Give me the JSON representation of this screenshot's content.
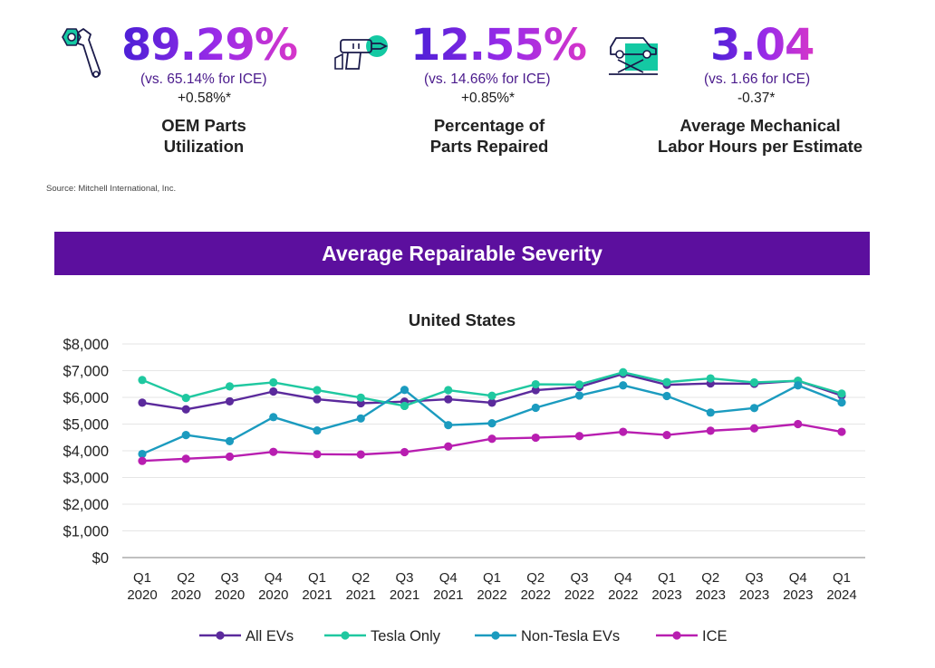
{
  "stats": [
    {
      "value": "89.29%",
      "comparison": "(vs. 65.14% for ICE)",
      "change": "+0.58%*",
      "label_line1": "OEM Parts",
      "label_line2": "Utilization",
      "icon": "wrench-gear-icon"
    },
    {
      "value": "12.55%",
      "comparison": "(vs. 14.66% for ICE)",
      "change": "+0.85%*",
      "label_line1": "Percentage of",
      "label_line2": "Parts Repaired",
      "icon": "drill-tool-icon"
    },
    {
      "value": "3.04",
      "comparison": "(vs. 1.66 for ICE)",
      "change": "-0.37*",
      "label_line1": "Average Mechanical",
      "label_line2": "Labor Hours per Estimate",
      "icon": "car-lift-icon"
    }
  ],
  "source": "Source: Mitchell International, Inc.",
  "banner_title": "Average Repairable Severity",
  "colors": {
    "brand_purple": "#5c0f9e",
    "accent_teal": "#14c9a3"
  },
  "chart_data": {
    "type": "line",
    "title": "United States",
    "xlabel": "",
    "ylabel": "",
    "ylim": [
      0,
      8000
    ],
    "yticks": [
      "$0",
      "$1,000",
      "$2,000",
      "$3,000",
      "$4,000",
      "$5,000",
      "$6,000",
      "$7,000",
      "$8,000"
    ],
    "categories": [
      [
        "Q1",
        "2020"
      ],
      [
        "Q2",
        "2020"
      ],
      [
        "Q3",
        "2020"
      ],
      [
        "Q4",
        "2020"
      ],
      [
        "Q1",
        "2021"
      ],
      [
        "Q2",
        "2021"
      ],
      [
        "Q3",
        "2021"
      ],
      [
        "Q4",
        "2021"
      ],
      [
        "Q1",
        "2022"
      ],
      [
        "Q2",
        "2022"
      ],
      [
        "Q3",
        "2022"
      ],
      [
        "Q4",
        "2022"
      ],
      [
        "Q1",
        "2023"
      ],
      [
        "Q2",
        "2023"
      ],
      [
        "Q3",
        "2023"
      ],
      [
        "Q4",
        "2023"
      ],
      [
        "Q1",
        "2024"
      ]
    ],
    "grid": true,
    "legend_position": "bottom",
    "series": [
      {
        "name": "All EVs",
        "color": "#5b2a9c",
        "values": [
          5800,
          5550,
          5850,
          6220,
          5930,
          5780,
          5840,
          5930,
          5800,
          6270,
          6390,
          6880,
          6470,
          6520,
          6510,
          6620,
          6070
        ]
      },
      {
        "name": "Tesla Only",
        "color": "#1fc8a0",
        "values": [
          6650,
          5980,
          6410,
          6560,
          6270,
          5990,
          5680,
          6270,
          6060,
          6490,
          6480,
          6940,
          6570,
          6710,
          6560,
          6620,
          6140
        ]
      },
      {
        "name": "Non-Tesla EVs",
        "color": "#1b9bbf",
        "values": [
          3880,
          4590,
          4360,
          5260,
          4760,
          5210,
          6280,
          4960,
          5030,
          5610,
          6070,
          6450,
          6050,
          5430,
          5600,
          6450,
          5810
        ]
      },
      {
        "name": "ICE",
        "color": "#b81eb0",
        "values": [
          3620,
          3700,
          3780,
          3960,
          3870,
          3860,
          3950,
          4160,
          4450,
          4490,
          4550,
          4710,
          4590,
          4750,
          4840,
          5000,
          4710
        ]
      }
    ]
  }
}
